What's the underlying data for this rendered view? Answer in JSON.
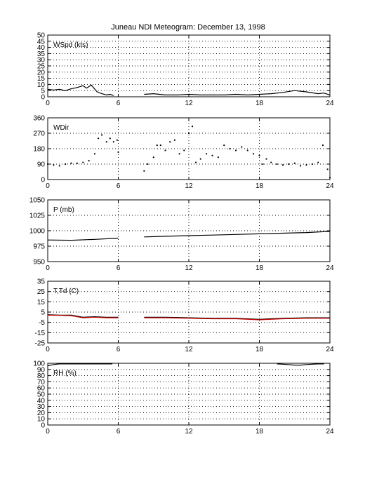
{
  "title": "Juneau NDI Meteogram:  December 13, 1998",
  "chart_data": [
    {
      "type": "line",
      "label": "WSpd (kts)",
      "xlim": [
        0,
        24
      ],
      "xticks": [
        0,
        6,
        12,
        18,
        24
      ],
      "ylim": [
        0,
        50
      ],
      "yticks": [
        0,
        5,
        10,
        15,
        20,
        25,
        30,
        35,
        40,
        45,
        50
      ],
      "grid": true,
      "series": [
        {
          "color": "#000000",
          "style": "line",
          "segments": [
            [
              [
                0,
                6
              ],
              [
                0.5,
                5.5
              ],
              [
                1,
                6
              ],
              [
                1.5,
                5
              ],
              [
                2,
                6.5
              ],
              [
                2.5,
                7.5
              ],
              [
                3,
                9
              ],
              [
                3.3,
                7
              ],
              [
                3.7,
                9.5
              ],
              [
                4.2,
                4
              ],
              [
                4.6,
                2.5
              ],
              [
                5,
                1.5
              ],
              [
                5.3,
                2
              ],
              [
                5.6,
                1
              ]
            ],
            [
              [
                8.2,
                2
              ],
              [
                9,
                2.5
              ],
              [
                10,
                1.5
              ],
              [
                11,
                1.5
              ],
              [
                12,
                2
              ],
              [
                13,
                1.5
              ],
              [
                14,
                1.5
              ],
              [
                15,
                1.5
              ],
              [
                16,
                2
              ],
              [
                17,
                1.5
              ],
              [
                18,
                2
              ],
              [
                19,
                2.5
              ],
              [
                20,
                3.5
              ],
              [
                21,
                5
              ],
              [
                22,
                4
              ],
              [
                23,
                2.5
              ],
              [
                23.5,
                3
              ],
              [
                24,
                1.5
              ]
            ]
          ]
        }
      ]
    },
    {
      "type": "scatter",
      "label": "WDir",
      "xlim": [
        0,
        24
      ],
      "xticks": [
        0,
        6,
        12,
        18,
        24
      ],
      "ylim": [
        0,
        360
      ],
      "yticks": [
        0,
        90,
        180,
        270,
        360
      ],
      "grid": true,
      "series": [
        {
          "color": "#000000",
          "style": "dots",
          "segments": [
            [
              [
                0,
                90
              ],
              [
                0.5,
                85
              ],
              [
                1,
                80
              ],
              [
                1.5,
                90
              ],
              [
                2,
                95
              ],
              [
                2.5,
                95
              ],
              [
                3,
                100
              ],
              [
                3.5,
                110
              ],
              [
                4,
                150
              ],
              [
                4.3,
                240
              ],
              [
                4.6,
                260
              ],
              [
                5,
                220
              ],
              [
                5.3,
                240
              ],
              [
                5.6,
                220
              ],
              [
                5.9,
                230
              ],
              [
                6,
                160
              ]
            ],
            [
              [
                8.2,
                50
              ],
              [
                8.5,
                90
              ],
              [
                9,
                130
              ],
              [
                9.3,
                200
              ],
              [
                9.6,
                200
              ],
              [
                10,
                170
              ],
              [
                10.4,
                220
              ],
              [
                10.8,
                230
              ],
              [
                11.2,
                150
              ],
              [
                11.6,
                170
              ],
              [
                12,
                270
              ],
              [
                12.3,
                310
              ],
              [
                12.6,
                100
              ],
              [
                13,
                120
              ],
              [
                13.5,
                150
              ],
              [
                14,
                140
              ],
              [
                14.5,
                130
              ],
              [
                15,
                200
              ],
              [
                15.5,
                180
              ],
              [
                16,
                170
              ],
              [
                16.5,
                190
              ],
              [
                17,
                170
              ],
              [
                17.5,
                150
              ],
              [
                18,
                140
              ],
              [
                18.3,
                90
              ],
              [
                18.6,
                120
              ],
              [
                19,
                100
              ],
              [
                19.5,
                90
              ],
              [
                20,
                85
              ],
              [
                20.5,
                90
              ],
              [
                21,
                95
              ],
              [
                21.5,
                80
              ],
              [
                22,
                85
              ],
              [
                22.5,
                90
              ],
              [
                23,
                100
              ],
              [
                23.4,
                200
              ],
              [
                23.8,
                60
              ],
              [
                24,
                10
              ]
            ]
          ]
        }
      ]
    },
    {
      "type": "line",
      "label": "P (mb)",
      "xlim": [
        0,
        24
      ],
      "xticks": [
        0,
        6,
        12,
        18,
        24
      ],
      "ylim": [
        950,
        1050
      ],
      "yticks": [
        950,
        975,
        1000,
        1025,
        1050
      ],
      "grid": true,
      "series": [
        {
          "color": "#000000",
          "style": "line",
          "segments": [
            [
              [
                0,
                985
              ],
              [
                2,
                984.5
              ],
              [
                4,
                986
              ],
              [
                6,
                988
              ]
            ],
            [
              [
                8.2,
                990
              ],
              [
                10,
                991
              ],
              [
                12,
                992
              ],
              [
                14,
                993
              ],
              [
                16,
                994
              ],
              [
                18,
                995
              ],
              [
                20,
                996
              ],
              [
                22,
                997
              ],
              [
                24,
                999
              ]
            ]
          ]
        }
      ]
    },
    {
      "type": "line",
      "label": "T,Td (C)",
      "xlim": [
        0,
        24
      ],
      "xticks": [
        0,
        6,
        12,
        18,
        24
      ],
      "ylim": [
        -25,
        35
      ],
      "yticks": [
        -25,
        -15,
        -5,
        5,
        15,
        25,
        35
      ],
      "grid": true,
      "series": [
        {
          "color": "#000000",
          "style": "line",
          "segments": [
            [
              [
                0,
                2.5
              ],
              [
                1,
                2
              ],
              [
                2,
                2
              ],
              [
                3,
                0
              ],
              [
                4,
                0.5
              ],
              [
                5,
                0
              ],
              [
                6,
                0
              ]
            ],
            [
              [
                8.2,
                0
              ],
              [
                10,
                0
              ],
              [
                12,
                -0.5
              ],
              [
                14,
                -1
              ],
              [
                16,
                -1
              ],
              [
                18,
                -2
              ],
              [
                20,
                -1
              ],
              [
                22,
                -0.5
              ],
              [
                24,
                -0.5
              ]
            ]
          ]
        },
        {
          "color": "#cc0000",
          "style": "line",
          "segments": [
            [
              [
                0,
                2
              ],
              [
                1,
                1.8
              ],
              [
                2,
                1.5
              ],
              [
                3,
                -0.5
              ],
              [
                4,
                0
              ],
              [
                5,
                -0.5
              ],
              [
                6,
                -0.5
              ]
            ],
            [
              [
                8.2,
                -0.5
              ],
              [
                10,
                -0.5
              ],
              [
                12,
                -1
              ],
              [
                14,
                -1.5
              ],
              [
                16,
                -1.5
              ],
              [
                18,
                -2.5
              ],
              [
                20,
                -1.5
              ],
              [
                22,
                -1
              ],
              [
                24,
                -1
              ]
            ]
          ]
        }
      ]
    },
    {
      "type": "line",
      "label": "RH (%)",
      "xlim": [
        0,
        24
      ],
      "xticks": [
        0,
        6,
        12,
        18,
        24
      ],
      "ylim": [
        0,
        100
      ],
      "yticks": [
        0,
        10,
        20,
        30,
        40,
        50,
        60,
        70,
        80,
        90,
        100
      ],
      "grid": true,
      "series": [
        {
          "color": "#000000",
          "style": "line",
          "segments": [
            [
              [
                0,
                96
              ],
              [
                0.5,
                98
              ],
              [
                1,
                99
              ],
              [
                2,
                99
              ],
              [
                3,
                99
              ],
              [
                4,
                99
              ],
              [
                5,
                99
              ],
              [
                5.5,
                99
              ]
            ],
            [
              [
                19.5,
                99
              ],
              [
                20.5,
                98
              ],
              [
                21,
                97
              ],
              [
                21.5,
                97
              ],
              [
                22,
                98
              ],
              [
                23,
                99
              ],
              [
                23.5,
                99
              ]
            ]
          ]
        }
      ]
    }
  ]
}
